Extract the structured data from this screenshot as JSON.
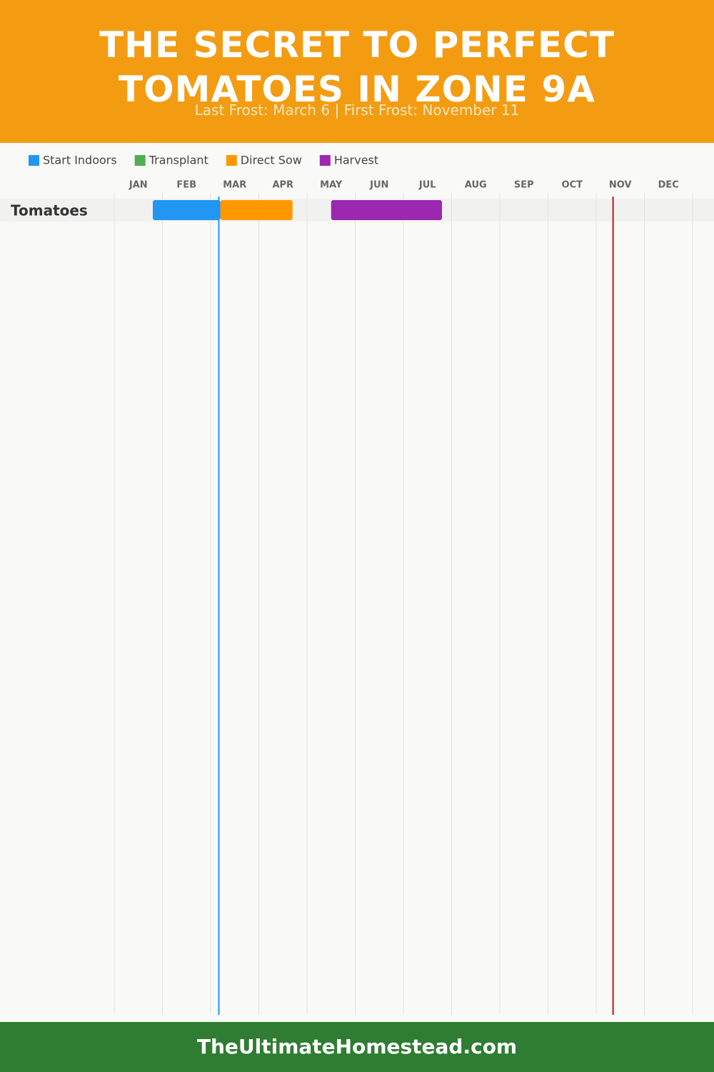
{
  "chart_data": {
    "type": "gantt",
    "title": "THE SECRET TO PERFECT TOMATOES IN ZONE 9A",
    "subtitle": "Last Frost: March 6 | First Frost: November 11",
    "months": [
      "JAN",
      "FEB",
      "MAR",
      "APR",
      "MAY",
      "JUN",
      "JUL",
      "AUG",
      "SEP",
      "OCT",
      "NOV",
      "DEC"
    ],
    "xlim": [
      0,
      12
    ],
    "categories": [
      "Tomatoes"
    ],
    "series": [
      {
        "name": "Start Indoors",
        "color": "#2196f3",
        "values": [
          [
            0.8,
            2.2
          ]
        ]
      },
      {
        "name": "Transplant",
        "color": "#4caf50",
        "values": [
          null
        ]
      },
      {
        "name": "Direct Sow",
        "color": "#ff9800",
        "values": [
          [
            2.2,
            3.7
          ]
        ]
      },
      {
        "name": "Harvest",
        "color": "#9c27b0",
        "values": [
          [
            4.5,
            6.8
          ]
        ]
      }
    ],
    "markers": [
      {
        "value": 2.17,
        "color": "#2196f3"
      },
      {
        "value": 10.35,
        "color": "#b71c1c"
      }
    ],
    "grid": true,
    "footer": "TheUltimateHomestead.com"
  }
}
